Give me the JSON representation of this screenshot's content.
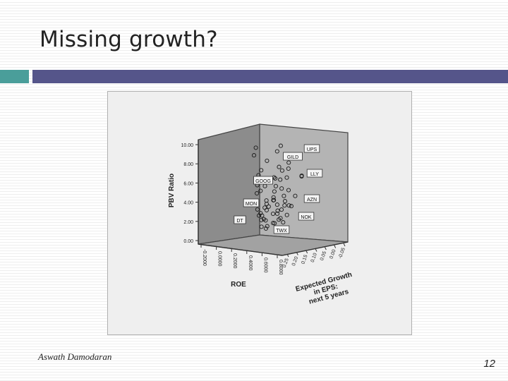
{
  "slide": {
    "title": "Missing growth?",
    "author": "Aswath Damodaran",
    "page_number": "12"
  },
  "colors": {
    "accent_teal": "#4a9e9a",
    "accent_navy": "#55558a",
    "plot_back_wall": "#b4b4b4",
    "plot_side_wall": "#8c8c8c",
    "plot_floor": "#a2a2a2"
  },
  "chart_data": {
    "type": "scatter",
    "projection": "3d",
    "title": "",
    "zlabel": "PBV Ratio",
    "xlabel": "ROE",
    "ylabel": "Expected Growth in EPS: next 5 years",
    "z_ticks": [
      "0.00",
      "2.00",
      "4.00",
      "6.00",
      "8.00",
      "10.00"
    ],
    "x_ticks": [
      "-0.2000",
      "0.0000",
      "0.2000",
      "0.4000",
      "0.6000",
      "0.8000"
    ],
    "y_ticks": [
      "0.25",
      "0.20",
      "0.15",
      "0.10",
      "0.05",
      "0.00",
      "-0.05"
    ],
    "zlim": [
      0,
      10
    ],
    "grid": false,
    "labeled_points": [
      "UPS",
      "GILD",
      "LLY",
      "GOOG",
      "AZN",
      "MON",
      "NOK",
      "DT",
      "TWX"
    ],
    "points_pbv": [
      9.9,
      9.6,
      9.3,
      9.0,
      8.8,
      8.4,
      8.0,
      7.6,
      7.4,
      7.3,
      7.2,
      6.9,
      6.8,
      6.6,
      6.6,
      6.5,
      6.4,
      6.4,
      6.3,
      6.2,
      6.1,
      5.9,
      5.8,
      5.6,
      5.4,
      5.3,
      5.1,
      5.0,
      4.9,
      4.7,
      4.6,
      4.5,
      4.3,
      4.2,
      4.1,
      4.0,
      3.9,
      3.8,
      3.7,
      3.7,
      3.6,
      3.5,
      3.4,
      3.3,
      3.3,
      3.2,
      3.1,
      3.0,
      2.9,
      2.8,
      2.7,
      2.6,
      2.5,
      2.4,
      2.3,
      2.2,
      2.1,
      2.0,
      1.9,
      1.8,
      1.7,
      1.5,
      1.4,
      1.2,
      1.0
    ]
  }
}
